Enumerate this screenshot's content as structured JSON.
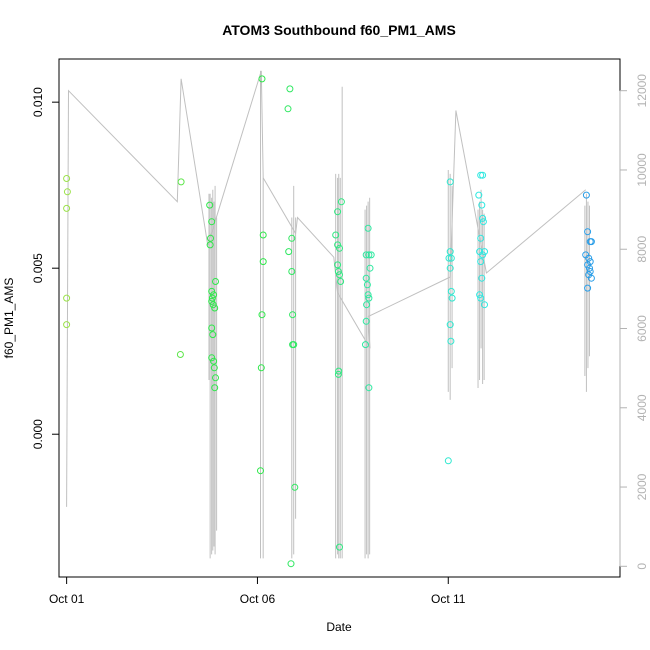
{
  "chart_data": {
    "type": "scatter",
    "title": "ATOM3 Southbound f60_PM1_AMS",
    "xlabel": "Date",
    "ylabel": "f60_PM1_AMS",
    "x_ticks": [
      "Oct 01",
      "Oct 06",
      "Oct 11"
    ],
    "x_tick_days": [
      1,
      6,
      11
    ],
    "xlim_days": [
      0.8,
      15.5
    ],
    "y_left": {
      "lim": [
        -0.0043,
        0.0113
      ],
      "ticks": [
        "0.000",
        "0.005",
        "0.010"
      ],
      "tick_values": [
        0.0,
        0.005,
        0.01
      ]
    },
    "y_right": {
      "lim": [
        -270,
        12800
      ],
      "ticks": [
        "0",
        "2000",
        "4000",
        "6000",
        "8000",
        "10000",
        "12000"
      ],
      "tick_values": [
        0,
        2000,
        4000,
        6000,
        8000,
        10000,
        12000
      ],
      "color": "#b3b3b3"
    },
    "grid": false,
    "colors": {
      "points_early": "#9be24a",
      "points_mid": "#2ee84a",
      "points_late": "#2ee8d0",
      "points_end": "#2a9ee8",
      "line": "#c0c0c0"
    },
    "series": [
      {
        "kind": "points",
        "axis": "left",
        "groups": [
          {
            "color": "#9be24a",
            "points": [
              [
                1.0,
                0.0077
              ],
              [
                1.02,
                0.0073
              ],
              [
                1.0,
                0.0068
              ],
              [
                1.0,
                0.0041
              ],
              [
                1.0,
                0.0033
              ]
            ]
          },
          {
            "color": "#5de64a",
            "points": [
              [
                4.0,
                0.0076
              ],
              [
                3.98,
                0.0024
              ]
            ]
          },
          {
            "color": "#2ee84a",
            "points": [
              [
                4.75,
                0.0069
              ],
              [
                4.8,
                0.0064
              ],
              [
                4.77,
                0.0059
              ],
              [
                4.76,
                0.0057
              ],
              [
                4.8,
                0.0043
              ],
              [
                4.85,
                0.0042
              ],
              [
                4.82,
                0.0041
              ],
              [
                4.8,
                0.004
              ],
              [
                4.84,
                0.0039
              ],
              [
                4.88,
                0.0038
              ],
              [
                4.9,
                0.0046
              ],
              [
                4.8,
                0.0032
              ],
              [
                4.83,
                0.003
              ],
              [
                4.8,
                0.0023
              ],
              [
                4.85,
                0.0022
              ],
              [
                4.87,
                0.002
              ],
              [
                4.9,
                0.0017
              ],
              [
                4.88,
                0.0014
              ]
            ]
          },
          {
            "color": "#2ee84a",
            "points": [
              [
                6.12,
                0.0107
              ],
              [
                6.15,
                0.006
              ],
              [
                6.15,
                0.0052
              ],
              [
                6.12,
                0.0036
              ],
              [
                6.1,
                0.002
              ],
              [
                6.08,
                -0.0011
              ]
            ]
          },
          {
            "color": "#2ee860",
            "points": [
              [
                6.85,
                0.0104
              ],
              [
                6.8,
                0.0098
              ],
              [
                6.82,
                0.0055
              ],
              [
                6.9,
                0.0059
              ],
              [
                6.9,
                0.0049
              ],
              [
                6.92,
                0.0036
              ],
              [
                6.92,
                0.0027
              ],
              [
                6.95,
                0.0027
              ],
              [
                6.98,
                -0.0016
              ],
              [
                6.88,
                -0.0039
              ]
            ]
          },
          {
            "color": "#2ee880",
            "points": [
              [
                8.05,
                0.006
              ],
              [
                8.1,
                0.0057
              ],
              [
                8.15,
                0.0056
              ],
              [
                8.1,
                0.0051
              ],
              [
                8.12,
                0.0049
              ],
              [
                8.15,
                0.0048
              ],
              [
                8.18,
                0.0046
              ],
              [
                8.1,
                0.0067
              ],
              [
                8.2,
                0.007
              ],
              [
                8.13,
                0.0019
              ],
              [
                8.12,
                0.0018
              ],
              [
                8.15,
                -0.0034
              ]
            ]
          },
          {
            "color": "#2ee8a0",
            "points": [
              [
                8.9,
                0.0062
              ],
              [
                8.85,
                0.0054
              ],
              [
                8.92,
                0.0054
              ],
              [
                8.98,
                0.0054
              ],
              [
                8.95,
                0.005
              ],
              [
                8.85,
                0.0047
              ],
              [
                8.88,
                0.0045
              ],
              [
                8.9,
                0.0042
              ],
              [
                8.92,
                0.0041
              ],
              [
                8.86,
                0.0039
              ],
              [
                8.85,
                0.0034
              ],
              [
                8.83,
                0.0027
              ],
              [
                8.92,
                0.0014
              ]
            ]
          },
          {
            "color": "#2ee8d0",
            "points": [
              [
                11.05,
                0.0076
              ],
              [
                11.05,
                0.0055
              ],
              [
                11.08,
                0.0053
              ],
              [
                11.02,
                0.0053
              ],
              [
                11.05,
                0.005
              ],
              [
                11.08,
                0.0043
              ],
              [
                11.1,
                0.0041
              ],
              [
                11.07,
                0.0028
              ],
              [
                11.05,
                0.0033
              ],
              [
                11.0,
                -0.0008
              ]
            ]
          },
          {
            "color": "#2ee8e0",
            "points": [
              [
                11.85,
                0.0078
              ],
              [
                11.9,
                0.0078
              ],
              [
                11.8,
                0.0072
              ],
              [
                11.88,
                0.0069
              ],
              [
                11.9,
                0.0065
              ],
              [
                11.92,
                0.0064
              ],
              [
                11.85,
                0.0059
              ],
              [
                11.82,
                0.0055
              ],
              [
                11.9,
                0.0054
              ],
              [
                11.95,
                0.0055
              ],
              [
                11.85,
                0.0052
              ],
              [
                11.88,
                0.0047
              ],
              [
                11.82,
                0.0042
              ],
              [
                11.85,
                0.0041
              ],
              [
                11.95,
                0.0039
              ]
            ]
          },
          {
            "color": "#2a9ee8",
            "points": [
              [
                14.62,
                0.0072
              ],
              [
                14.65,
                0.0061
              ],
              [
                14.72,
                0.0058
              ],
              [
                14.75,
                0.0058
              ],
              [
                14.6,
                0.0054
              ],
              [
                14.68,
                0.0053
              ],
              [
                14.72,
                0.0052
              ],
              [
                14.65,
                0.0051
              ],
              [
                14.7,
                0.005
              ],
              [
                14.72,
                0.0049
              ],
              [
                14.68,
                0.0048
              ],
              [
                14.75,
                0.0047
              ],
              [
                14.65,
                0.0044
              ]
            ]
          }
        ]
      },
      {
        "kind": "line",
        "axis": "right",
        "color": "#c0c0c0",
        "points": [
          [
            1.0,
            1500
          ],
          [
            1.05,
            12000
          ],
          [
            3.9,
            9200
          ],
          [
            4.0,
            12300
          ],
          [
            4.7,
            8100
          ],
          [
            6.1,
            12500
          ],
          [
            6.15,
            9800
          ],
          [
            7.0,
            8400
          ],
          [
            7.05,
            8800
          ],
          [
            8.0,
            7800
          ],
          [
            8.1,
            6900
          ],
          [
            8.95,
            5500
          ],
          [
            8.9,
            6300
          ],
          [
            11.05,
            7300
          ],
          [
            11.2,
            11500
          ],
          [
            12.0,
            7400
          ],
          [
            14.6,
            9500
          ]
        ]
      },
      {
        "kind": "spikes",
        "axis": "right",
        "color": "#c0c0c0",
        "spikes": [
          [
            4.73,
            4700,
            9400
          ],
          [
            4.76,
            200,
            9400
          ],
          [
            4.8,
            300,
            9300
          ],
          [
            4.83,
            400,
            9500
          ],
          [
            4.86,
            500,
            9200
          ],
          [
            4.89,
            300,
            9600
          ],
          [
            4.93,
            900,
            8800
          ],
          [
            6.08,
            200,
            12500
          ],
          [
            6.15,
            200,
            9800
          ],
          [
            6.9,
            200,
            8800
          ],
          [
            6.95,
            300,
            9600
          ],
          [
            7.0,
            1200,
            8800
          ],
          [
            8.05,
            200,
            9900
          ],
          [
            8.1,
            300,
            9800
          ],
          [
            8.13,
            200,
            9900
          ],
          [
            8.17,
            200,
            9800
          ],
          [
            8.22,
            200,
            12100
          ],
          [
            8.82,
            200,
            9000
          ],
          [
            8.86,
            300,
            9100
          ],
          [
            8.9,
            200,
            9200
          ],
          [
            8.94,
            300,
            9300
          ],
          [
            11.0,
            4400,
            10000
          ],
          [
            11.05,
            4200,
            9900
          ],
          [
            11.1,
            5000,
            9600
          ],
          [
            11.78,
            4500,
            9000
          ],
          [
            11.82,
            4700,
            9200
          ],
          [
            11.86,
            5500,
            9500
          ],
          [
            11.9,
            4600,
            9000
          ],
          [
            11.94,
            4700,
            8900
          ],
          [
            14.58,
            4800,
            9100
          ],
          [
            14.62,
            4400,
            9400
          ],
          [
            14.66,
            5000,
            9200
          ],
          [
            14.7,
            5300,
            9100
          ]
        ]
      }
    ]
  }
}
